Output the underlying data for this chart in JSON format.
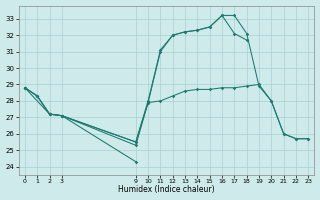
{
  "xlabel": "Humidex (Indice chaleur)",
  "bg_color": "#ceeaea",
  "line_color": "#1a7a6e",
  "grid_color": "#aacfcf",
  "line1_x": [
    0,
    1,
    2,
    3,
    9,
    10,
    11,
    12,
    13,
    14,
    15,
    16,
    17,
    18,
    19,
    20,
    21,
    22,
    23
  ],
  "line1_y": [
    28.8,
    28.3,
    27.2,
    27.1,
    25.3,
    27.9,
    31.0,
    32.0,
    32.2,
    32.3,
    32.5,
    33.2,
    33.2,
    32.1,
    28.9,
    28.0,
    26.0,
    25.7,
    25.7
  ],
  "line2_x": [
    0,
    1,
    2,
    3,
    9,
    10,
    11,
    12,
    13,
    14,
    15,
    16,
    17,
    18,
    19,
    20,
    21,
    22,
    23
  ],
  "line2_y": [
    28.8,
    28.3,
    27.2,
    27.1,
    25.5,
    27.9,
    28.0,
    28.3,
    28.6,
    28.7,
    28.7,
    28.8,
    28.8,
    28.9,
    29.0,
    28.0,
    26.0,
    25.7,
    25.7
  ],
  "line3_x": [
    0,
    1,
    2,
    3,
    9,
    10,
    11,
    12,
    13,
    14,
    15,
    16,
    17,
    18
  ],
  "line3_y": [
    28.8,
    28.3,
    27.2,
    27.1,
    25.5,
    28.0,
    31.1,
    32.0,
    32.2,
    32.3,
    32.5,
    33.2,
    32.1,
    31.7
  ],
  "line4_x": [
    0,
    2,
    3,
    9
  ],
  "line4_y": [
    28.8,
    27.2,
    27.1,
    24.3
  ],
  "ylim": [
    23.5,
    33.8
  ],
  "yticks": [
    24,
    25,
    26,
    27,
    28,
    29,
    30,
    31,
    32,
    33
  ],
  "xlim": [
    -0.5,
    23.5
  ],
  "xtick_positions": [
    0,
    1,
    2,
    3,
    9,
    10,
    11,
    12,
    13,
    14,
    15,
    16,
    17,
    18,
    19,
    20,
    21,
    22,
    23
  ],
  "xtick_labels": [
    "0",
    "1",
    "2",
    "3",
    "9",
    "10",
    "11",
    "12",
    "13",
    "14",
    "15",
    "16",
    "17",
    "18",
    "19",
    "20",
    "21",
    "22",
    "23"
  ]
}
